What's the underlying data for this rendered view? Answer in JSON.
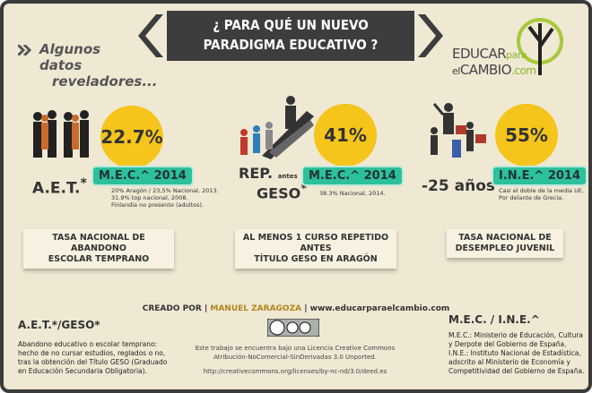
{
  "header": {
    "title_lines": [
      "¿ PARA QUÉ UN NUEVO",
      "PARADIGMA EDUCATIVO ?"
    ],
    "subtitle_lines": [
      "Algunos datos",
      "reveladores..."
    ],
    "logo": {
      "top": "EDUCAR",
      "top_small": "para",
      "bottom_small": "el",
      "bottom": "CAMBIO",
      ".com": ".com"
    }
  },
  "stats": [
    {
      "value": "22.7%",
      "label": "A.E.T.",
      "label_mark": "*",
      "source": "M.E.C.^ 2014",
      "notes": [
        "20% Aragón / 23,5% Nacional, 2013.",
        "31.9% top nacional, 2008.",
        "Finlandia no presente (adultos)."
      ],
      "caption": [
        "TASA NACIONAL DE ABANDONO",
        "ESCOLAR TEMPRANO"
      ]
    },
    {
      "value": "41%",
      "label": "REP.",
      "label_small": "antes",
      "label2": "GESO",
      "label_mark": "*",
      "source": "M.E.C.^ 2014",
      "notes": [
        "38.3% Nacional, 2014."
      ],
      "caption": [
        "AL MENOS 1 CURSO REPETIDO ANTES",
        "TÍTULO GESO EN ARAGÓN"
      ]
    },
    {
      "value": "55%",
      "label": "-25 años",
      "source": "I.N.E.^ 2014",
      "notes": [
        "Casi el doble de la media UE.",
        "Por delante de Grecia."
      ],
      "caption": [
        "TASA NACIONAL DE",
        "DESEMPLEO JUVENIL"
      ]
    }
  ],
  "footer": {
    "credit": {
      "prefix": "CREADO POR",
      "author": "MANUEL ZARAGOZA",
      "site": "www.educarparaelcambio.com"
    },
    "license_lines": [
      "Este trabajo se encuentra bajo una Licencia Creative Commons",
      "Atribución-NoComercial-SinDerivadas 3.0 Unported."
    ],
    "license_url": "http://creativecommons.org/licenses/by-nc-nd/3.0/deed.es",
    "left": {
      "heading": "A.E.T.*/GESO*",
      "lines": [
        "Abandono educativo o escolar temprano:",
        "hecho de no cursar estudios, reglados o no,",
        "tras la obtención del Título GESO (Graduado",
        "en Educación Secundaria Obligatoria)."
      ]
    },
    "right": {
      "heading": "M.E.C. / I.N.E.^",
      "lines": [
        "M.E.C.: Ministerio de Educación, Cultura",
        "y Derpote del Gobierno de España.",
        "I.N.E.: Instituto Nacional de Estadística,",
        "adscrito al Ministerio de Economía y",
        "Competitividad del Gobierno de España."
      ]
    }
  }
}
